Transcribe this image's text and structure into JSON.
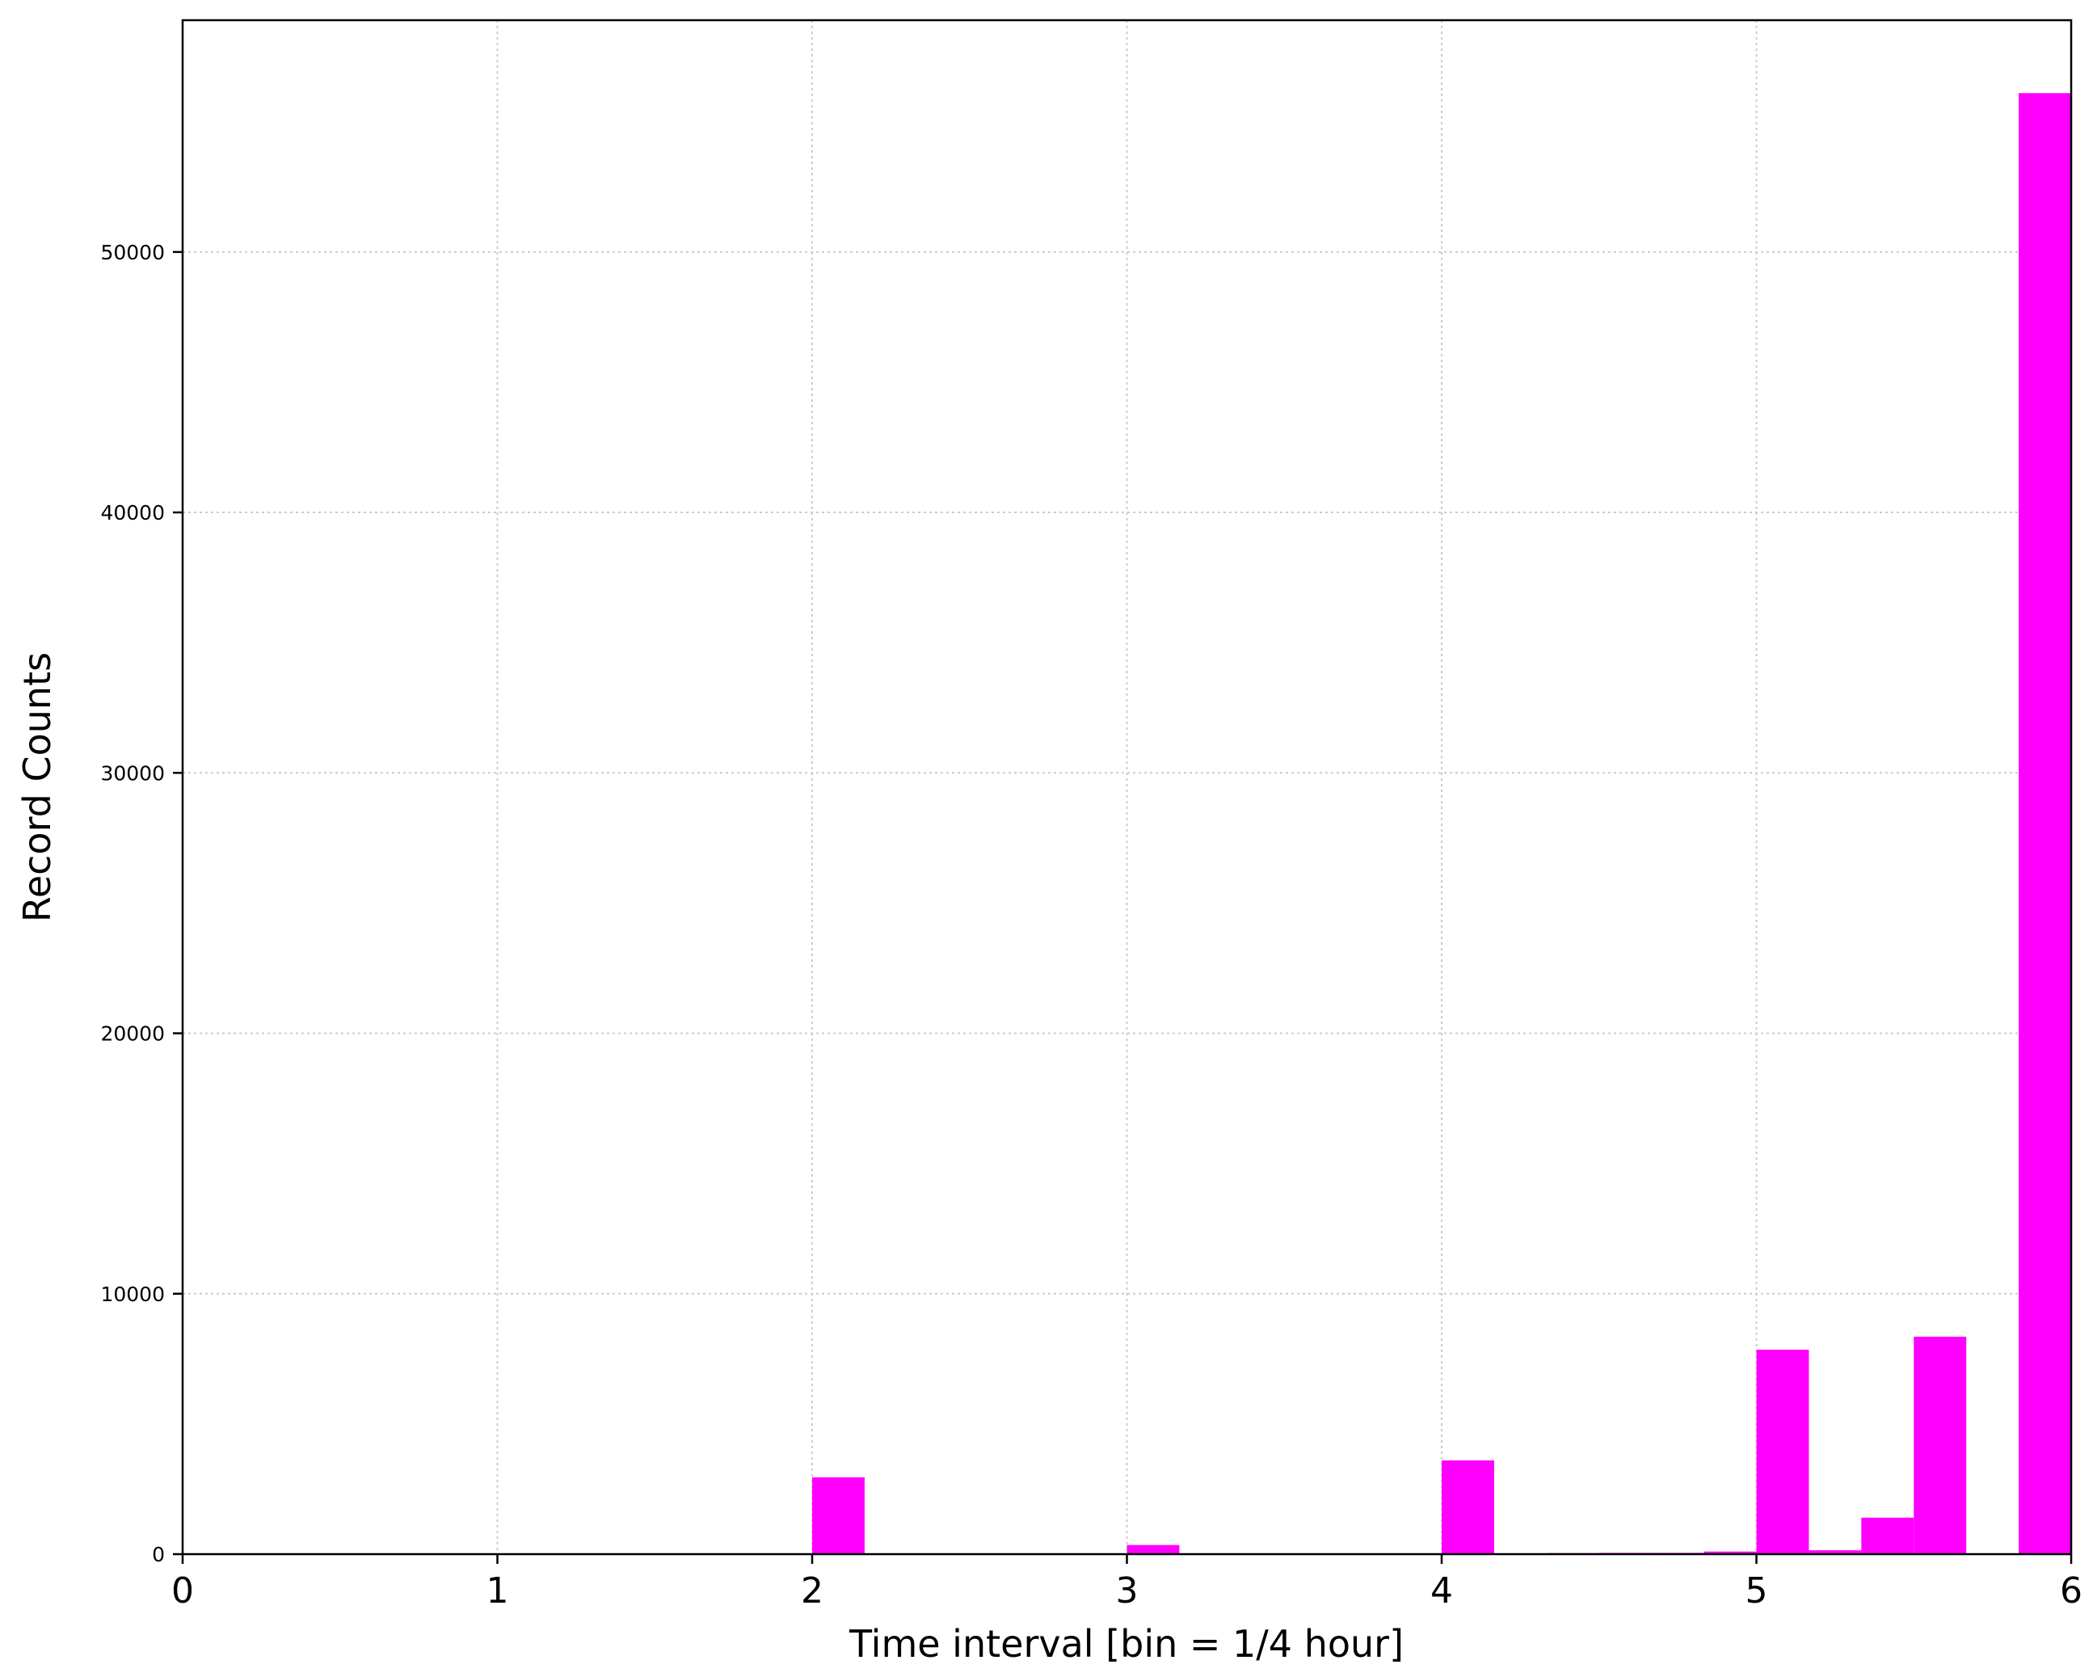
{
  "chart_data": {
    "type": "bar",
    "xlabel": "Time interval [bin = 1/4 hour]",
    "ylabel": "Record Counts",
    "xlim": [
      0,
      6
    ],
    "ylim": [
      0,
      58900
    ],
    "grid": true,
    "color": "#ff00ff",
    "bin_width": 0.1667,
    "x_ticks": [
      "0",
      "1",
      "2",
      "3",
      "4",
      "5",
      "6"
    ],
    "y_ticks": [
      "0",
      "10000",
      "20000",
      "30000",
      "40000",
      "50000"
    ],
    "bins": [
      {
        "x0": 2.0,
        "x1": 2.1667,
        "value": 2950
      },
      {
        "x0": 3.0,
        "x1": 3.1667,
        "value": 350
      },
      {
        "x0": 4.0,
        "x1": 4.1667,
        "value": 3600
      },
      {
        "x0": 4.3333,
        "x1": 4.5,
        "value": 40
      },
      {
        "x0": 4.5,
        "x1": 4.6667,
        "value": 50
      },
      {
        "x0": 4.6667,
        "x1": 4.8333,
        "value": 50
      },
      {
        "x0": 4.8333,
        "x1": 5.0,
        "value": 100
      },
      {
        "x0": 5.0,
        "x1": 5.1667,
        "value": 7850
      },
      {
        "x0": 5.1667,
        "x1": 5.3333,
        "value": 150
      },
      {
        "x0": 5.3333,
        "x1": 5.5,
        "value": 1400
      },
      {
        "x0": 5.5,
        "x1": 5.6667,
        "value": 8350
      },
      {
        "x0": 5.8333,
        "x1": 6.0,
        "value": 56100
      }
    ]
  }
}
